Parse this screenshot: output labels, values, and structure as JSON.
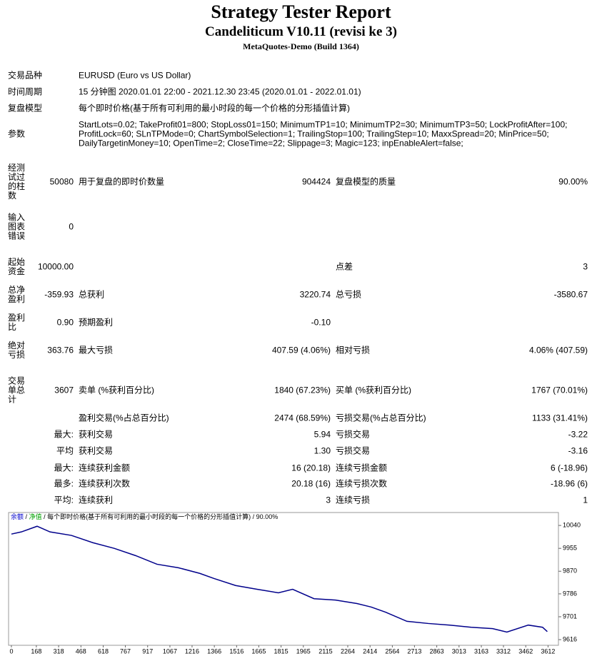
{
  "header": {
    "title": "Strategy Tester Report",
    "subtitle": "Candeliticum V10.11 (revisi ke 3)",
    "build": "MetaQuotes-Demo (Build 1364)"
  },
  "info": [
    {
      "label": "交易品种",
      "value": "EURUSD (Euro vs US Dollar)"
    },
    {
      "label": "时间周期",
      "value": "15 分钟图 2020.01.01 22:00 - 2021.12.30 23:45 (2020.01.01 - 2022.01.01)"
    },
    {
      "label": "复盘模型",
      "value": "每个即时价格(基于所有可利用的最小时段的每一个价格的分形插值计算)"
    },
    {
      "label": "参数",
      "value": "StartLots=0.02; TakeProfit01=800; StopLoss01=150; MinimumTP1=10; MinimumTP2=30; MinimumTP3=50; LockProfitAfter=100; ProfitLock=60; SLnTPMode=0; ChartSymbolSelection=1; TrailingStop=100; TrailingStep=10; MaxxSpread=20; MinPrice=50; DailyTargetinMoney=10; OpenTime=2; CloseTime=22; Slippage=3; Magic=123; inpEnableAlert=false;"
    }
  ],
  "stats": [
    {
      "label": "经测试过的柱数",
      "value": "50080",
      "label2": "用于复盘的即时价数量",
      "value2": "904424",
      "label3": "复盘模型的质量",
      "value3": "90.00%"
    },
    {
      "label": "输入图表错误",
      "value": "0"
    },
    {
      "label": "起始资金",
      "value": "10000.00",
      "label3": "点差",
      "value3": "3"
    },
    {
      "label": "总净盈利",
      "value": "-359.93",
      "label2": "总获利",
      "value2": "3220.74",
      "label3": "总亏损",
      "value3": "-3580.67"
    },
    {
      "label": "盈利比",
      "value": "0.90",
      "label2": "预期盈利",
      "value2": "-0.10"
    },
    {
      "label": "绝对亏损",
      "value": "363.76",
      "label2": "最大亏损",
      "value2": "407.59 (4.06%)",
      "label3": "相对亏损",
      "value3": "4.06% (407.59)"
    },
    {
      "label": "交易单总计",
      "value": "3607",
      "label2": "卖单 (%获利百分比)",
      "value2": "1840 (67.23%)",
      "label3": "买单 (%获利百分比)",
      "value3": "1767 (70.01%)"
    },
    {
      "label2": "盈利交易(%占总百分比)",
      "value2": "2474 (68.59%)",
      "label3": "亏损交易(%占总百分比)",
      "value3": "1133 (31.41%)"
    },
    {
      "value": "最大:",
      "label2": "获利交易",
      "value2": "5.94",
      "label3": "亏损交易",
      "value3": "-3.22"
    },
    {
      "value": "平均",
      "label2": "获利交易",
      "value2": "1.30",
      "label3": "亏损交易",
      "value3": "-3.16"
    },
    {
      "value": "最大:",
      "label2": "连续获利金额",
      "value2": "16 (20.18)",
      "label3": "连续亏损金额",
      "value3": "6 (-18.96)"
    },
    {
      "value": "最多:",
      "label2": "连续获利次数",
      "value2": "20.18 (16)",
      "label3": "连续亏损次数",
      "value3": "-18.96 (6)"
    },
    {
      "value": "平均:",
      "label2": "连续获利",
      "value2": "3",
      "label3": "连续亏损",
      "value3": "1"
    }
  ],
  "chart_data": {
    "type": "line",
    "balance_label": "余额",
    "equity_label": "净值",
    "separator": "/",
    "model": "每个即时价格(基于所有可利用的最小时段的每一个价格的分形插值计算)",
    "quality": "90.00%",
    "x": [
      0,
      67,
      173,
      260,
      404,
      548,
      692,
      836,
      980,
      1124,
      1268,
      1364,
      1509,
      1653,
      1797,
      1893,
      2037,
      2181,
      2326,
      2422,
      2518,
      2662,
      2806,
      2951,
      3095,
      3239,
      3335,
      3479,
      3575,
      3607
    ],
    "series": [
      {
        "name": "余额",
        "color": "#00008b",
        "values": [
          10008,
          10016,
          10037,
          10016,
          10003,
          9976,
          9955,
          9928,
          9896,
          9883,
          9862,
          9843,
          9817,
          9803,
          9790,
          9803,
          9768,
          9763,
          9750,
          9737,
          9718,
          9684,
          9676,
          9670,
          9662,
          9657,
          9644,
          9670,
          9662,
          9646
        ]
      }
    ],
    "xlim": [
      -19,
      3682
    ],
    "ylim": [
      9595,
      10088
    ],
    "xticks": [
      0,
      168,
      318,
      468,
      618,
      767,
      917,
      1067,
      1216,
      1366,
      1516,
      1665,
      1815,
      1965,
      2115,
      2264,
      2414,
      2564,
      2713,
      2863,
      3013,
      3163,
      3312,
      3462,
      3612
    ],
    "yticks": [
      9616,
      9701,
      9786,
      9870,
      9955,
      10040
    ]
  }
}
